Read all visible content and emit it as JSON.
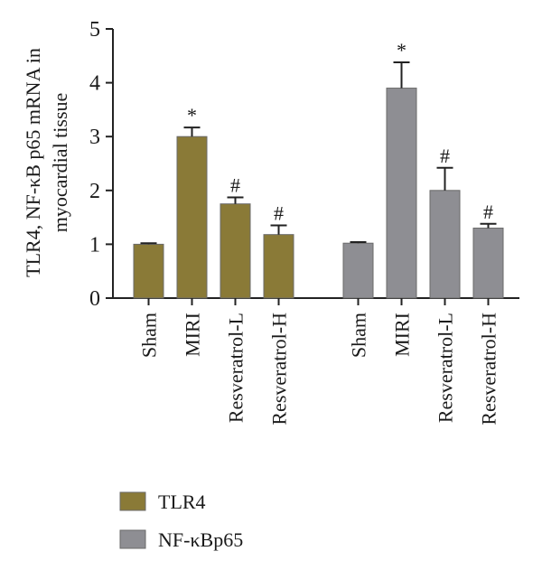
{
  "chart_data": {
    "type": "bar",
    "ylabel_lines": [
      "TLR4, NF-κB p65 mRNA in",
      "myocardial tissue"
    ],
    "ylim": [
      0,
      5
    ],
    "yticks": [
      "0",
      "1",
      "2",
      "3",
      "4",
      "5"
    ],
    "grid": false,
    "legend_position": "bottom-left",
    "groups": [
      {
        "name": "TLR4",
        "color": "#8a7a37",
        "categories": [
          "Sham",
          "MIRI",
          "Resveratrol-L",
          "Resveratrol-H"
        ],
        "values": [
          1.0,
          3.0,
          1.75,
          1.18
        ],
        "errors": [
          0.02,
          0.17,
          0.12,
          0.17
        ],
        "markers": [
          "",
          "*",
          "#",
          "#"
        ]
      },
      {
        "name": "NF-κBp65",
        "color": "#8e8e93",
        "categories": [
          "Sham",
          "MIRI",
          "Resveratrol-L",
          "Resveratrol-H"
        ],
        "values": [
          1.02,
          3.9,
          2.0,
          1.3
        ],
        "errors": [
          0.02,
          0.48,
          0.42,
          0.08
        ],
        "markers": [
          "",
          "*",
          "#",
          "#"
        ]
      }
    ]
  }
}
